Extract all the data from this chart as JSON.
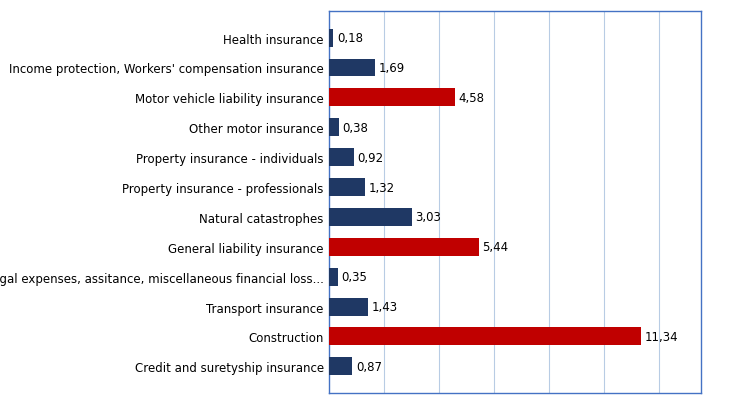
{
  "categories": [
    "Credit and suretyship insurance",
    "Construction",
    "Transport insurance",
    "Legal expenses, assitance, miscellaneous financial loss...",
    "General liability insurance",
    "Natural catastrophes",
    "Property insurance - professionals",
    "Property insurance - individuals",
    "Other motor insurance",
    "Motor vehicle liability insurance",
    "Income protection, Workers' compensation insurance",
    "Health insurance"
  ],
  "values": [
    0.87,
    11.34,
    1.43,
    0.35,
    5.44,
    3.03,
    1.32,
    0.92,
    0.38,
    4.58,
    1.69,
    0.18
  ],
  "colors": [
    "#1f3864",
    "#c00000",
    "#1f3864",
    "#1f3864",
    "#c00000",
    "#1f3864",
    "#1f3864",
    "#1f3864",
    "#1f3864",
    "#c00000",
    "#1f3864",
    "#1f3864"
  ],
  "xlim": [
    0,
    13.5
  ],
  "bar_height": 0.6,
  "value_labels": [
    "0,87",
    "11,34",
    "1,43",
    "0,35",
    "5,44",
    "3,03",
    "1,32",
    "0,92",
    "0,38",
    "4,58",
    "1,69",
    "0,18"
  ],
  "label_fontsize": 8.5,
  "value_fontsize": 8.5,
  "axis_linecolor": "#4472c4",
  "grid_color": "#b8cce4",
  "grid_xticks": [
    2,
    4,
    6,
    8,
    10,
    12
  ]
}
